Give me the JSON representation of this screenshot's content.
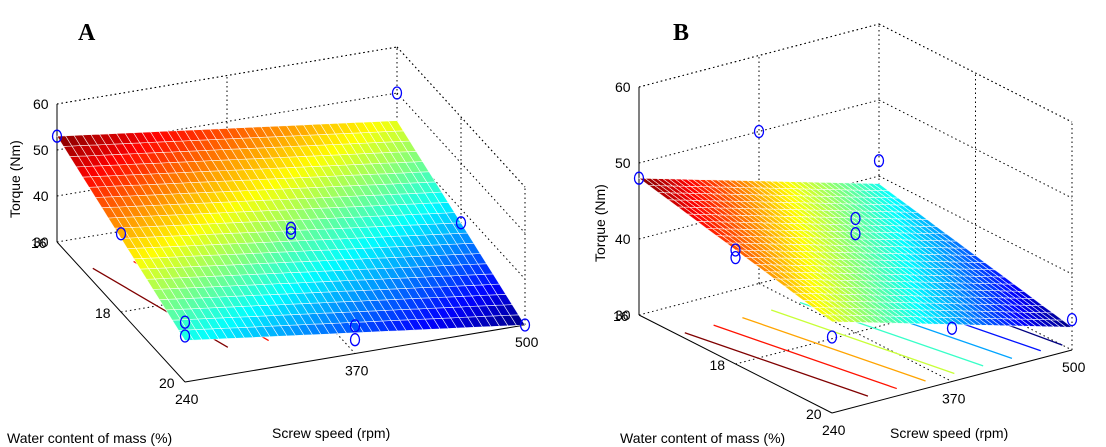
{
  "chart_data": [
    {
      "panel_label": "A",
      "type": "surface3d",
      "xlabel": "Screw speed (rpm)",
      "ylabel": "Water content of mass (%)",
      "zlabel": "Torque (Nm)",
      "x_ticks": [
        "240",
        "370",
        "500"
      ],
      "y_ticks": [
        "16",
        "18",
        "20"
      ],
      "z_ticks": [
        "30",
        "40",
        "50",
        "60"
      ],
      "xlim": [
        240,
        500
      ],
      "ylim": [
        16,
        20
      ],
      "zlim": [
        30,
        60
      ],
      "surface_corners": [
        {
          "screw_speed": 240,
          "water_content": 16,
          "torque": 53
        },
        {
          "screw_speed": 500,
          "water_content": 16,
          "torque": 44
        },
        {
          "screw_speed": 500,
          "water_content": 20,
          "torque": 30
        },
        {
          "screw_speed": 240,
          "water_content": 20,
          "torque": 39
        }
      ],
      "points": [
        {
          "screw_speed": 240,
          "water_content": 16,
          "torque": 53
        },
        {
          "screw_speed": 240,
          "water_content": 18,
          "torque": 47
        },
        {
          "screw_speed": 240,
          "water_content": 20,
          "torque": 40
        },
        {
          "screw_speed": 240,
          "water_content": 20,
          "torque": 43
        },
        {
          "screw_speed": 370,
          "water_content": 18,
          "torque": 42
        },
        {
          "screw_speed": 370,
          "water_content": 18,
          "torque": 41
        },
        {
          "screw_speed": 370,
          "water_content": 20,
          "torque": 36
        },
        {
          "screw_speed": 370,
          "water_content": 20,
          "torque": 33
        },
        {
          "screw_speed": 500,
          "water_content": 16,
          "torque": 50
        },
        {
          "screw_speed": 500,
          "water_content": 18,
          "torque": 37
        },
        {
          "screw_speed": 500,
          "water_content": 20,
          "torque": 30
        }
      ]
    },
    {
      "panel_label": "B",
      "type": "surface3d",
      "xlabel": "Screw speed (rpm)",
      "ylabel": "Water content of mass (%)",
      "zlabel": "Torque (Nm)",
      "x_ticks": [
        "240",
        "370",
        "500"
      ],
      "y_ticks": [
        "16",
        "18",
        "20"
      ],
      "z_ticks": [
        "30",
        "40",
        "50",
        "60"
      ],
      "xlim": [
        240,
        500
      ],
      "ylim": [
        16,
        20
      ],
      "zlim": [
        30,
        60
      ],
      "surface_corners": [
        {
          "screw_speed": 240,
          "water_content": 16,
          "torque": 48
        },
        {
          "screw_speed": 500,
          "water_content": 16,
          "torque": 39
        },
        {
          "screw_speed": 500,
          "water_content": 20,
          "torque": 33
        },
        {
          "screw_speed": 240,
          "water_content": 20,
          "torque": 42
        }
      ],
      "points": [
        {
          "screw_speed": 240,
          "water_content": 16,
          "torque": 48
        },
        {
          "screw_speed": 240,
          "water_content": 18,
          "torque": 45
        },
        {
          "screw_speed": 240,
          "water_content": 18,
          "torque": 44
        },
        {
          "screw_speed": 240,
          "water_content": 20,
          "torque": 40
        },
        {
          "screw_speed": 370,
          "water_content": 16,
          "torque": 50
        },
        {
          "screw_speed": 370,
          "water_content": 18,
          "torque": 45
        },
        {
          "screw_speed": 370,
          "water_content": 18,
          "torque": 43
        },
        {
          "screw_speed": 370,
          "water_content": 20,
          "torque": 37
        },
        {
          "screw_speed": 500,
          "water_content": 16,
          "torque": 42
        },
        {
          "screw_speed": 500,
          "water_content": 20,
          "torque": 34
        }
      ]
    }
  ]
}
